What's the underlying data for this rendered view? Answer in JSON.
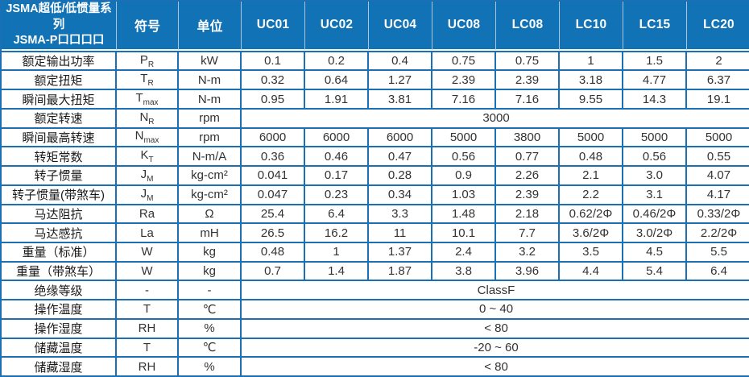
{
  "table": {
    "header": {
      "title_line1": "JSMA超低/低惯量系列",
      "title_line2": "JSMA-P口口口口",
      "symbol_col": "符号",
      "unit_col": "单位",
      "models": [
        "UC01",
        "UC02",
        "UC04",
        "UC08",
        "LC08",
        "LC10",
        "LC15",
        "LC20"
      ]
    },
    "rows": [
      {
        "label": "额定输出功率",
        "sym": "P",
        "sub": "R",
        "unit": "kW",
        "values": [
          "0.1",
          "0.2",
          "0.4",
          "0.75",
          "0.75",
          "1",
          "1.5",
          "2"
        ]
      },
      {
        "label": "额定扭矩",
        "sym": "T",
        "sub": "R",
        "unit": "N-m",
        "values": [
          "0.32",
          "0.64",
          "1.27",
          "2.39",
          "2.39",
          "3.18",
          "4.77",
          "6.37"
        ]
      },
      {
        "label": "瞬间最大扭矩",
        "sym": "T",
        "sub": "max",
        "unit": "N-m",
        "values": [
          "0.95",
          "1.91",
          "3.81",
          "7.16",
          "7.16",
          "9.55",
          "14.3",
          "19.1"
        ]
      },
      {
        "label": "额定转速",
        "sym": "N",
        "sub": "R",
        "unit": "rpm",
        "merged": "3000"
      },
      {
        "label": "瞬间最高转速",
        "sym": "N",
        "sub": "max",
        "unit": "rpm",
        "values": [
          "6000",
          "6000",
          "6000",
          "5000",
          "3800",
          "5000",
          "5000",
          "5000"
        ]
      },
      {
        "label": "转矩常数",
        "sym": "K",
        "sub": "T",
        "unit": "N-m/A",
        "values": [
          "0.36",
          "0.46",
          "0.47",
          "0.56",
          "0.77",
          "0.48",
          "0.56",
          "0.55"
        ]
      },
      {
        "label": "转子惯量",
        "sym": "J",
        "sub": "M",
        "unit": "kg-cm²",
        "values": [
          "0.041",
          "0.17",
          "0.28",
          "0.9",
          "2.26",
          "2.1",
          "3.0",
          "4.07"
        ]
      },
      {
        "label": "转子惯量(带煞车)",
        "sym": "J",
        "sub": "M",
        "unit": "kg-cm²",
        "values": [
          "0.047",
          "0.23",
          "0.34",
          "1.03",
          "2.39",
          "2.2",
          "3.1",
          "4.17"
        ]
      },
      {
        "label": "马达阻抗",
        "sym": "Ra",
        "sub": "",
        "unit": "Ω",
        "values": [
          "25.4",
          "6.4",
          "3.3",
          "1.48",
          "2.18",
          "0.62/2Φ",
          "0.46/2Φ",
          "0.33/2Φ"
        ]
      },
      {
        "label": "马达感抗",
        "sym": "La",
        "sub": "",
        "unit": "mH",
        "values": [
          "26.5",
          "16.2",
          "11",
          "10.1",
          "7.7",
          "3.6/2Φ",
          "3.0/2Φ",
          "2.2/2Φ"
        ]
      },
      {
        "label": "重量（标准）",
        "sym": "W",
        "sub": "",
        "unit": "kg",
        "values": [
          "0.48",
          "1",
          "1.37",
          "2.4",
          "3.2",
          "3.5",
          "4.5",
          "5.5"
        ]
      },
      {
        "label": "重量（带煞车）",
        "sym": "W",
        "sub": "",
        "unit": "kg",
        "values": [
          "0.7",
          "1.4",
          "1.87",
          "3.8",
          "3.96",
          "4.4",
          "5.4",
          "6.4"
        ]
      },
      {
        "label": "绝缘等级",
        "sym": "-",
        "sub": "",
        "unit": "-",
        "merged": "ClassF"
      },
      {
        "label": "操作温度",
        "sym": "T",
        "sub": "",
        "unit": "℃",
        "merged": "0 ~ 40"
      },
      {
        "label": "操作湿度",
        "sym": "RH",
        "sub": "",
        "unit": "%",
        "merged": "< 80"
      },
      {
        "label": "储藏温度",
        "sym": "T",
        "sub": "",
        "unit": "℃",
        "merged": "-20 ~ 60"
      },
      {
        "label": "储藏湿度",
        "sym": "RH",
        "sub": "",
        "unit": "%",
        "merged": "< 80"
      }
    ],
    "colors": {
      "header_bg": "#1272b6",
      "grid": "#1b6fb5",
      "header_divider": "#aec3d8",
      "header_text": "#ffffff",
      "label_text": "#1a1a1a",
      "value_text": "#333333"
    }
  }
}
